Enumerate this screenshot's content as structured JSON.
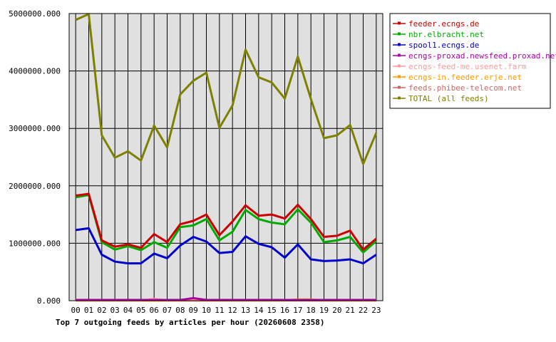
{
  "chart_data": {
    "type": "line",
    "title": "Top 7 outgoing feeds by articles per hour (20260608 2358)",
    "xlabel": "",
    "ylabel": "",
    "x": [
      "00",
      "01",
      "02",
      "03",
      "04",
      "05",
      "06",
      "07",
      "08",
      "09",
      "10",
      "11",
      "12",
      "13",
      "14",
      "15",
      "16",
      "17",
      "18",
      "19",
      "20",
      "21",
      "22",
      "23"
    ],
    "ylim": [
      0,
      5000000
    ],
    "yticks": [
      0,
      1000000,
      2000000,
      3000000,
      4000000,
      5000000
    ],
    "ytick_labels": [
      "0.000",
      "1000000.000",
      "2000000.000",
      "3000000.000",
      "4000000.000",
      "5000000.000"
    ],
    "grid": true,
    "legend_position": "top-right, outside plot",
    "series": [
      {
        "name": "feeder.ecngs.de",
        "color": "#cc0000",
        "values": [
          1830000,
          1860000,
          1050000,
          940000,
          980000,
          920000,
          1160000,
          1020000,
          1330000,
          1390000,
          1500000,
          1140000,
          1380000,
          1660000,
          1480000,
          1500000,
          1430000,
          1670000,
          1420000,
          1110000,
          1130000,
          1220000,
          890000,
          1080000
        ]
      },
      {
        "name": "nbr.elbracht.net",
        "color": "#00aa00",
        "values": [
          1800000,
          1840000,
          1020000,
          890000,
          950000,
          880000,
          1020000,
          920000,
          1280000,
          1310000,
          1420000,
          1050000,
          1200000,
          1580000,
          1420000,
          1360000,
          1330000,
          1590000,
          1360000,
          1020000,
          1050000,
          1110000,
          840000,
          1040000
        ]
      },
      {
        "name": "spool1.ecngs.de",
        "color": "#0000cc",
        "values": [
          1230000,
          1260000,
          800000,
          680000,
          650000,
          650000,
          820000,
          740000,
          960000,
          1110000,
          1030000,
          830000,
          850000,
          1120000,
          990000,
          930000,
          750000,
          980000,
          720000,
          690000,
          700000,
          720000,
          650000,
          800000
        ]
      },
      {
        "name": "ecngs-proxad.newsfeed.proxad.net",
        "color": "#aa00aa",
        "values": [
          12000,
          12000,
          12000,
          12000,
          12000,
          12000,
          12000,
          12000,
          12000,
          45000,
          12000,
          12000,
          12000,
          12000,
          12000,
          12000,
          12000,
          12000,
          12000,
          12000,
          12000,
          12000,
          12000,
          12000
        ]
      },
      {
        "name": "ecngs-feed-me.usenet.farm",
        "color": "#ff9999",
        "values": [
          8000,
          8000,
          8000,
          8000,
          8000,
          8000,
          30000,
          8000,
          8000,
          8000,
          8000,
          8000,
          8000,
          8000,
          8000,
          8000,
          8000,
          8000,
          8000,
          8000,
          8000,
          8000,
          8000,
          8000
        ]
      },
      {
        "name": "ecngs-in.feeder.erje.net",
        "color": "#ff9900",
        "values": [
          5000,
          5000,
          5000,
          5000,
          5000,
          5000,
          5000,
          5000,
          5000,
          5000,
          5000,
          5000,
          5000,
          5000,
          5000,
          5000,
          5000,
          20000,
          20000,
          5000,
          5000,
          5000,
          5000,
          5000
        ]
      },
      {
        "name": "feeds.phibee-telecom.net",
        "color": "#cc6666",
        "values": [
          3000,
          3000,
          3000,
          3000,
          3000,
          3000,
          3000,
          3000,
          3000,
          3000,
          3000,
          3000,
          3000,
          3000,
          3000,
          3000,
          3000,
          3000,
          3000,
          3000,
          3000,
          3000,
          3000,
          3000
        ]
      },
      {
        "name": "TOTAL (all feeds)",
        "color": "#808000",
        "values": [
          4890000,
          4990000,
          2880000,
          2490000,
          2600000,
          2440000,
          3050000,
          2670000,
          3590000,
          3830000,
          3970000,
          3010000,
          3400000,
          4370000,
          3890000,
          3800000,
          3520000,
          4250000,
          3510000,
          2830000,
          2880000,
          3060000,
          2380000,
          2920000
        ]
      }
    ]
  }
}
